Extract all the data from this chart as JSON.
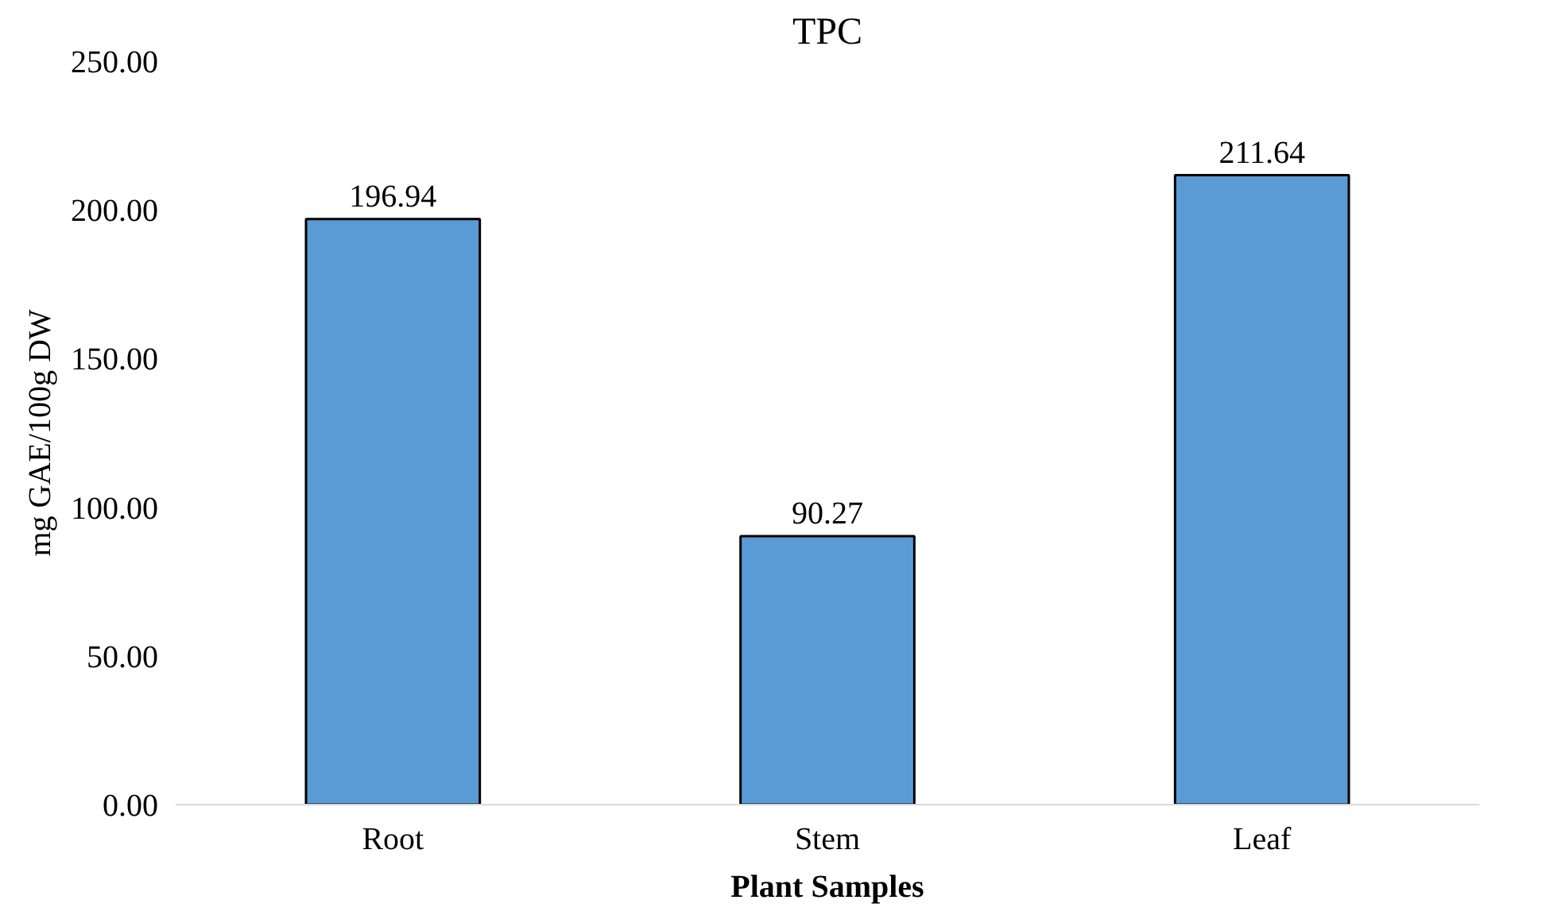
{
  "chart_data": {
    "type": "bar",
    "title": "TPC",
    "xlabel": "Plant Samples",
    "ylabel": "mg GAE/100g DW",
    "categories": [
      "Root",
      "Stem",
      "Leaf"
    ],
    "values": [
      196.94,
      90.27,
      211.64
    ],
    "color": "#5b9bd5",
    "ylim": [
      0,
      250
    ],
    "yticks": [
      {
        "value": 0,
        "label": "0.00"
      },
      {
        "value": 50,
        "label": "50.00"
      },
      {
        "value": 100,
        "label": "100.00"
      },
      {
        "value": 150,
        "label": "150.00"
      },
      {
        "value": 200,
        "label": "200.00"
      },
      {
        "value": 250,
        "label": "250.00"
      }
    ],
    "data_labels": true,
    "grid": false
  }
}
